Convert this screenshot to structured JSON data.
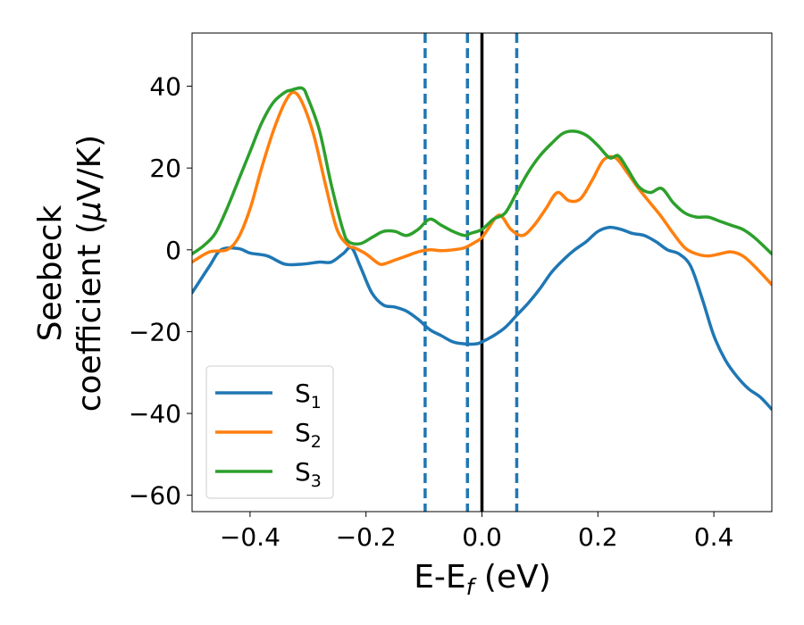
{
  "chart_data": {
    "type": "line",
    "xlabel": {
      "base": "E-E",
      "sub": "f",
      "unit": " (eV)"
    },
    "ylabel": {
      "line1": "Seebeck",
      "line2_prefix": "coefficient  (",
      "mu": "μ",
      "line2_suffix": "V/K)"
    },
    "xlim": [
      -0.5,
      0.5
    ],
    "ylim": [
      -64,
      53
    ],
    "xticks": [
      -0.4,
      -0.2,
      0.0,
      0.2,
      0.4
    ],
    "xtick_labels": [
      "−0.4",
      "−0.2",
      "0.0",
      "0.2",
      "0.4"
    ],
    "yticks": [
      -60,
      -40,
      -20,
      0,
      20,
      40
    ],
    "ytick_labels": [
      "−60",
      "−40",
      "−20",
      "0",
      "20",
      "40"
    ],
    "grid": false,
    "legend_position": "lower-left",
    "vlines": [
      {
        "x": 0.0,
        "style": "solid",
        "color": "#000000"
      },
      {
        "x": -0.098,
        "style": "dashed",
        "color": "#1f77b4"
      },
      {
        "x": -0.025,
        "style": "dashed",
        "color": "#1f77b4"
      },
      {
        "x": 0.06,
        "style": "dashed",
        "color": "#1f77b4"
      }
    ],
    "series": [
      {
        "name": "S",
        "sub": "1",
        "color": "#1f77b4",
        "x": [
          -0.5,
          -0.47,
          -0.45,
          -0.42,
          -0.4,
          -0.37,
          -0.34,
          -0.31,
          -0.28,
          -0.26,
          -0.24,
          -0.225,
          -0.21,
          -0.19,
          -0.17,
          -0.15,
          -0.13,
          -0.11,
          -0.09,
          -0.07,
          -0.05,
          -0.03,
          -0.01,
          0.0,
          0.02,
          0.04,
          0.06,
          0.08,
          0.1,
          0.12,
          0.14,
          0.16,
          0.18,
          0.2,
          0.22,
          0.24,
          0.26,
          0.28,
          0.3,
          0.32,
          0.34,
          0.36,
          0.38,
          0.4,
          0.42,
          0.44,
          0.46,
          0.48,
          0.5
        ],
        "y": [
          -10.5,
          -4,
          0,
          0.3,
          -0.8,
          -1.5,
          -3.5,
          -3.5,
          -3,
          -3,
          -1,
          0.5,
          -4,
          -10.5,
          -13.5,
          -14,
          -15,
          -17,
          -19.5,
          -21,
          -22.5,
          -23,
          -23,
          -22.5,
          -21,
          -19,
          -16,
          -13,
          -9.5,
          -5.5,
          -2.5,
          0,
          2,
          4.5,
          5.5,
          5,
          4,
          3.5,
          2,
          0,
          -1,
          -4,
          -12,
          -21,
          -27,
          -31,
          -34,
          -36,
          -39
        ]
      },
      {
        "name": "S",
        "sub": "2",
        "color": "#ff7f0e",
        "x": [
          -0.5,
          -0.47,
          -0.44,
          -0.42,
          -0.4,
          -0.38,
          -0.36,
          -0.34,
          -0.325,
          -0.31,
          -0.29,
          -0.27,
          -0.25,
          -0.23,
          -0.22,
          -0.2,
          -0.18,
          -0.17,
          -0.15,
          -0.13,
          -0.11,
          -0.09,
          -0.07,
          -0.05,
          -0.03,
          -0.01,
          0.0,
          0.01,
          0.03,
          0.05,
          0.07,
          0.09,
          0.11,
          0.13,
          0.15,
          0.17,
          0.19,
          0.21,
          0.23,
          0.25,
          0.27,
          0.29,
          0.31,
          0.33,
          0.35,
          0.37,
          0.39,
          0.41,
          0.43,
          0.45,
          0.47,
          0.5
        ],
        "y": [
          -3,
          -0.5,
          0,
          3,
          10,
          20,
          29,
          36,
          38.5,
          36,
          28,
          16,
          5,
          1,
          0.5,
          -1,
          -3.2,
          -3.5,
          -2.5,
          -1.5,
          -0.5,
          0,
          -0.2,
          0,
          0.5,
          2,
          3,
          5,
          8.5,
          5,
          3.5,
          6,
          10,
          14,
          12,
          12.5,
          17,
          22,
          22.5,
          19,
          15,
          11.5,
          8,
          4,
          0.5,
          -1,
          -1.5,
          -1,
          -0.5,
          -1.5,
          -4,
          -8.5
        ]
      },
      {
        "name": "S",
        "sub": "3",
        "color": "#2ca02c",
        "x": [
          -0.5,
          -0.48,
          -0.46,
          -0.44,
          -0.42,
          -0.4,
          -0.38,
          -0.36,
          -0.34,
          -0.33,
          -0.31,
          -0.3,
          -0.28,
          -0.26,
          -0.24,
          -0.23,
          -0.21,
          -0.19,
          -0.17,
          -0.15,
          -0.13,
          -0.11,
          -0.09,
          -0.07,
          -0.05,
          -0.03,
          -0.02,
          0.0,
          0.02,
          0.04,
          0.06,
          0.08,
          0.1,
          0.12,
          0.14,
          0.16,
          0.18,
          0.2,
          0.22,
          0.235,
          0.25,
          0.27,
          0.29,
          0.31,
          0.33,
          0.35,
          0.37,
          0.39,
          0.41,
          0.43,
          0.45,
          0.47,
          0.5
        ],
        "y": [
          -1,
          1,
          4,
          10,
          17,
          24,
          31,
          36,
          38.5,
          39,
          39.5,
          37,
          29,
          16,
          5,
          2,
          1.5,
          3,
          4.5,
          4.5,
          3.5,
          5,
          7.5,
          6,
          4.5,
          3.5,
          4,
          5,
          7.5,
          9,
          14,
          19,
          23,
          26,
          28.5,
          29,
          28,
          25.5,
          22.5,
          23,
          20,
          15.5,
          14,
          15,
          11.5,
          9,
          8,
          8,
          7,
          6,
          5,
          3,
          -1
        ]
      }
    ]
  }
}
